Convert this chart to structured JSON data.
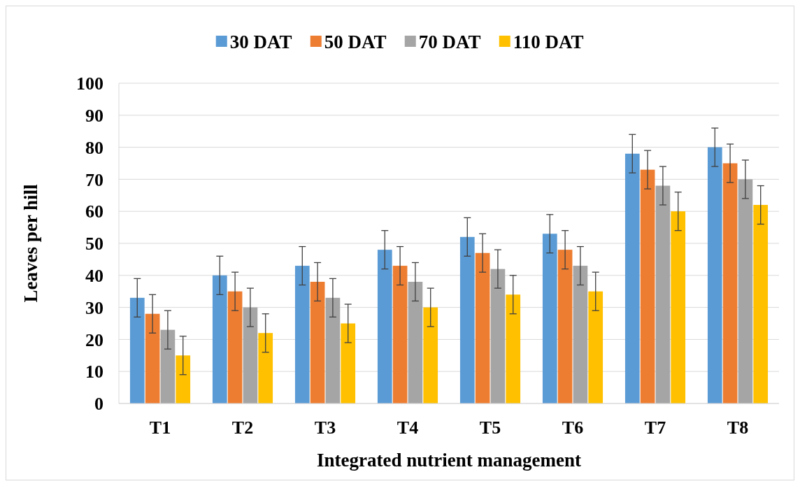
{
  "chart_data": {
    "type": "bar",
    "xlabel": "Integrated nutrient management",
    "ylabel": "Leaves per hill",
    "categories": [
      "T1",
      "T2",
      "T3",
      "T4",
      "T5",
      "T6",
      "T7",
      "T8"
    ],
    "series": [
      {
        "name": "30 DAT",
        "color": "#5b9bd5",
        "values": [
          33,
          40,
          43,
          48,
          52,
          53,
          78,
          80
        ],
        "errors": [
          6,
          6,
          6,
          6,
          6,
          6,
          6,
          6
        ]
      },
      {
        "name": "50 DAT",
        "color": "#ed7d31",
        "values": [
          28,
          35,
          38,
          43,
          47,
          48,
          73,
          75
        ],
        "errors": [
          6,
          6,
          6,
          6,
          6,
          6,
          6,
          6
        ]
      },
      {
        "name": "70 DAT",
        "color": "#a5a5a5",
        "values": [
          23,
          30,
          33,
          38,
          42,
          43,
          68,
          70
        ],
        "errors": [
          6,
          6,
          6,
          6,
          6,
          6,
          6,
          6
        ]
      },
      {
        "name": "110 DAT",
        "color": "#ffc000",
        "values": [
          15,
          22,
          25,
          30,
          34,
          35,
          60,
          62
        ],
        "errors": [
          6,
          6,
          6,
          6,
          6,
          6,
          6,
          6
        ]
      }
    ],
    "ylim": [
      0,
      100
    ],
    "yticks": [
      0,
      10,
      20,
      30,
      40,
      50,
      60,
      70,
      80,
      90,
      100
    ],
    "grid": "y",
    "legend": "top"
  }
}
